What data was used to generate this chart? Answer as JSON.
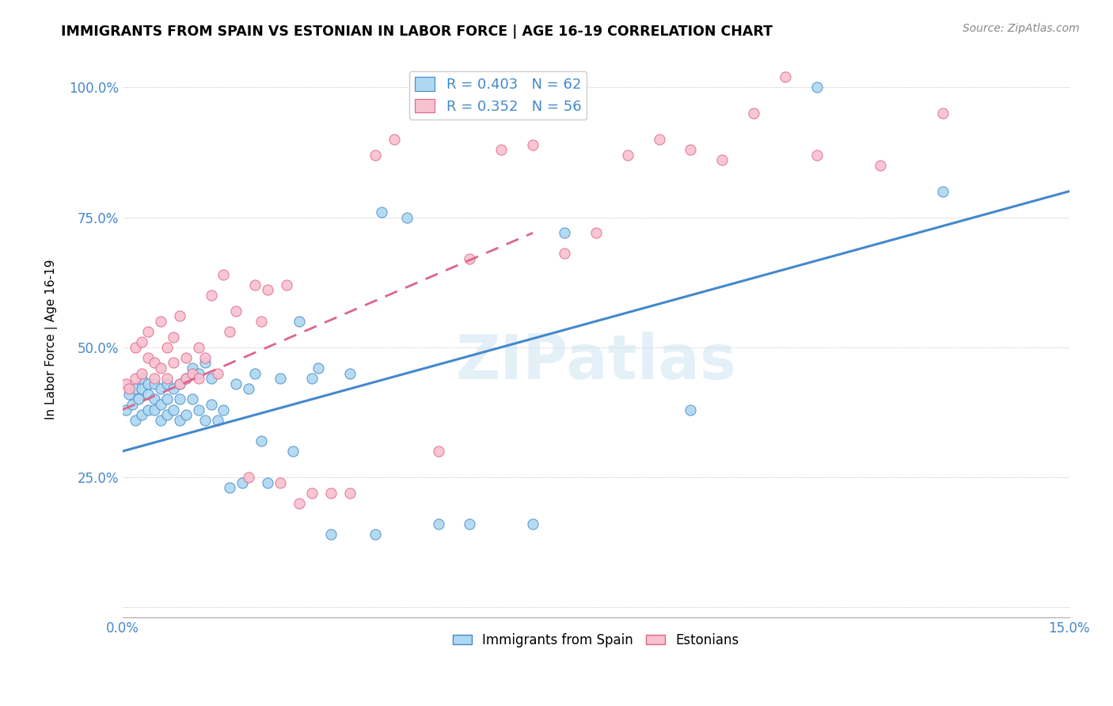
{
  "title": "IMMIGRANTS FROM SPAIN VS ESTONIAN IN LABOR FORCE | AGE 16-19 CORRELATION CHART",
  "source": "Source: ZipAtlas.com",
  "ylabel": "In Labor Force | Age 16-19",
  "x_min": 0.0,
  "x_max": 0.15,
  "y_min": -0.02,
  "y_max": 1.05,
  "x_ticks": [
    0.0,
    0.03,
    0.06,
    0.09,
    0.12,
    0.15
  ],
  "x_tick_labels": [
    "0.0%",
    "",
    "",
    "",
    "",
    "15.0%"
  ],
  "y_ticks": [
    0.0,
    0.25,
    0.5,
    0.75,
    1.0
  ],
  "y_tick_labels": [
    "",
    "25.0%",
    "50.0%",
    "75.0%",
    "100.0%"
  ],
  "blue_color": "#add8f0",
  "pink_color": "#f9c0d0",
  "line_blue": "#4488cc",
  "line_pink": "#dd6688",
  "watermark": "ZIPatlas",
  "blue_scatter_x": [
    0.0005,
    0.001,
    0.0015,
    0.002,
    0.002,
    0.0025,
    0.003,
    0.003,
    0.003,
    0.004,
    0.004,
    0.004,
    0.005,
    0.005,
    0.005,
    0.006,
    0.006,
    0.006,
    0.007,
    0.007,
    0.007,
    0.008,
    0.008,
    0.009,
    0.009,
    0.009,
    0.01,
    0.01,
    0.011,
    0.011,
    0.012,
    0.012,
    0.013,
    0.013,
    0.014,
    0.014,
    0.015,
    0.016,
    0.017,
    0.018,
    0.019,
    0.02,
    0.021,
    0.022,
    0.023,
    0.025,
    0.027,
    0.028,
    0.03,
    0.031,
    0.033,
    0.036,
    0.04,
    0.041,
    0.045,
    0.05,
    0.055,
    0.065,
    0.07,
    0.09,
    0.11,
    0.13
  ],
  "blue_scatter_y": [
    0.38,
    0.41,
    0.39,
    0.36,
    0.42,
    0.4,
    0.37,
    0.42,
    0.44,
    0.38,
    0.41,
    0.43,
    0.38,
    0.4,
    0.43,
    0.36,
    0.39,
    0.42,
    0.37,
    0.4,
    0.43,
    0.38,
    0.42,
    0.36,
    0.4,
    0.43,
    0.37,
    0.44,
    0.4,
    0.46,
    0.38,
    0.45,
    0.36,
    0.47,
    0.39,
    0.44,
    0.36,
    0.38,
    0.23,
    0.43,
    0.24,
    0.42,
    0.45,
    0.32,
    0.24,
    0.44,
    0.3,
    0.55,
    0.44,
    0.46,
    0.14,
    0.45,
    0.14,
    0.76,
    0.75,
    0.16,
    0.16,
    0.16,
    0.72,
    0.38,
    1.0,
    0.8
  ],
  "pink_scatter_x": [
    0.0005,
    0.001,
    0.002,
    0.002,
    0.003,
    0.003,
    0.004,
    0.004,
    0.005,
    0.005,
    0.006,
    0.006,
    0.007,
    0.007,
    0.008,
    0.008,
    0.009,
    0.009,
    0.01,
    0.01,
    0.011,
    0.012,
    0.012,
    0.013,
    0.014,
    0.015,
    0.016,
    0.017,
    0.018,
    0.02,
    0.021,
    0.022,
    0.023,
    0.025,
    0.026,
    0.028,
    0.03,
    0.033,
    0.036,
    0.04,
    0.043,
    0.05,
    0.055,
    0.06,
    0.065,
    0.07,
    0.075,
    0.08,
    0.085,
    0.09,
    0.095,
    0.1,
    0.105,
    0.11,
    0.12,
    0.13
  ],
  "pink_scatter_y": [
    0.43,
    0.42,
    0.5,
    0.44,
    0.51,
    0.45,
    0.48,
    0.53,
    0.47,
    0.44,
    0.55,
    0.46,
    0.5,
    0.44,
    0.52,
    0.47,
    0.56,
    0.43,
    0.48,
    0.44,
    0.45,
    0.5,
    0.44,
    0.48,
    0.6,
    0.45,
    0.64,
    0.53,
    0.57,
    0.25,
    0.62,
    0.55,
    0.61,
    0.24,
    0.62,
    0.2,
    0.22,
    0.22,
    0.22,
    0.87,
    0.9,
    0.3,
    0.67,
    0.88,
    0.89,
    0.68,
    0.72,
    0.87,
    0.9,
    0.88,
    0.86,
    0.95,
    1.02,
    0.87,
    0.85,
    0.95
  ],
  "blue_line_x": [
    0.0,
    0.15
  ],
  "blue_line_y": [
    0.3,
    0.8
  ],
  "pink_line_x": [
    0.0,
    0.065
  ],
  "pink_line_y": [
    0.38,
    0.72
  ]
}
